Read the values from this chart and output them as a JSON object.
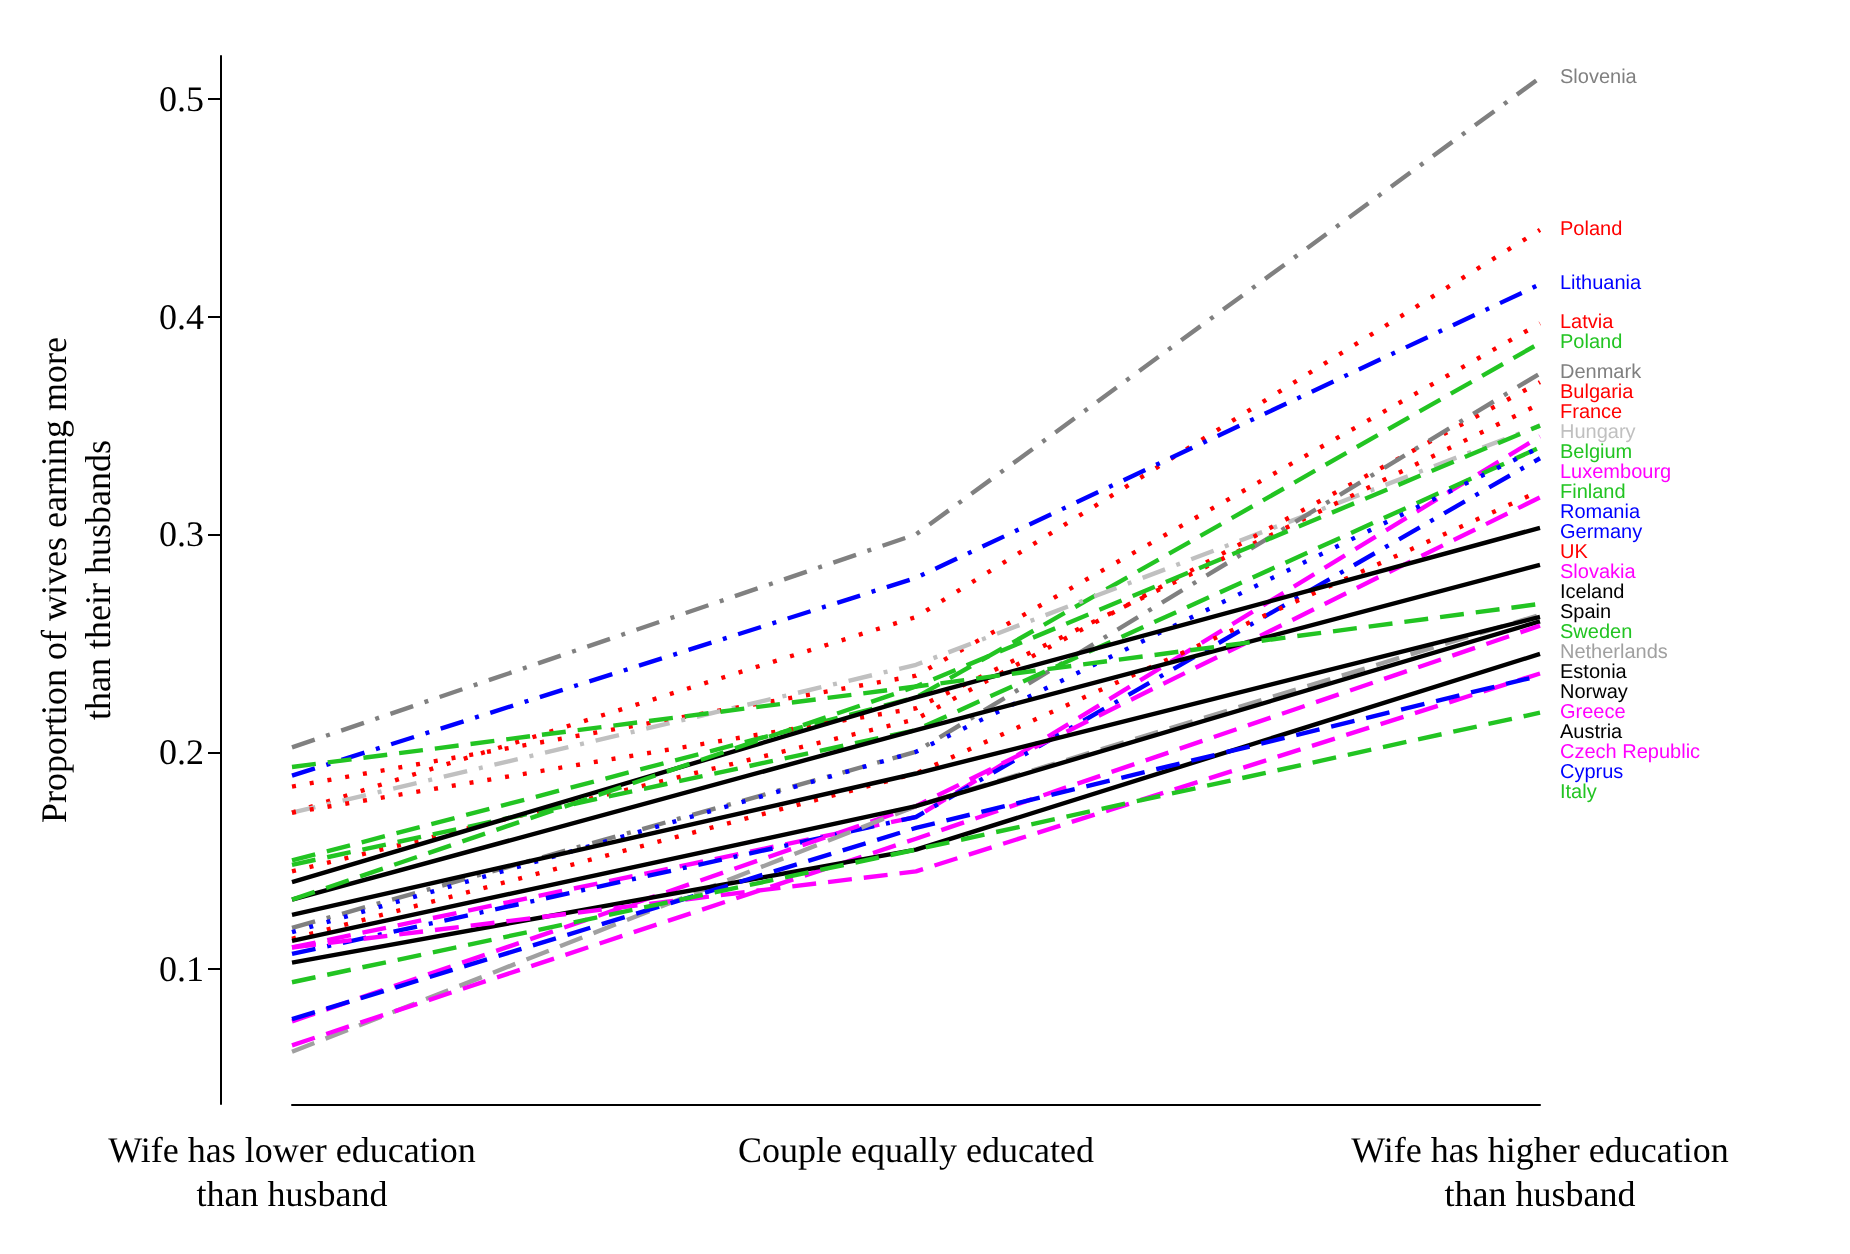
{
  "chart_data": {
    "type": "line",
    "ylabel": "Proportion of wives earning more\nthan their husbands",
    "categories": [
      "Wife has lower education\nthan husband",
      "Couple equally educated",
      "Wife has higher education\nthan husband"
    ],
    "ylim": [
      0.038,
      0.52
    ],
    "yticks": [
      0.1,
      0.2,
      0.3,
      0.4,
      0.5
    ],
    "grid": false,
    "marker": "none",
    "legend": "right",
    "series": [
      {
        "name": "Slovenia",
        "color": "#808080",
        "line_style": "dashdot",
        "values": [
          0.202,
          0.3,
          0.51
        ]
      },
      {
        "name": "Poland",
        "color": "#ff0000",
        "line_style": "dotted",
        "values": [
          0.172,
          0.262,
          0.44
        ]
      },
      {
        "name": "Lithuania",
        "color": "#0000ff",
        "line_style": "dashdot",
        "values": [
          0.189,
          0.28,
          0.415
        ]
      },
      {
        "name": "Latvia",
        "color": "#ff0000",
        "line_style": "dotted",
        "values": [
          0.184,
          0.235,
          0.397
        ]
      },
      {
        "name": "Poland",
        "color": "#22c422",
        "line_style": "dashed",
        "values": [
          0.15,
          0.225,
          0.388
        ]
      },
      {
        "name": "Hungary",
        "color": "#c0c0c0",
        "line_style": "dashdot",
        "values": [
          0.172,
          0.24,
          0.35
        ]
      },
      {
        "name": "Bulgaria",
        "color": "#ff0000",
        "line_style": "dotted",
        "values": [
          0.145,
          0.215,
          0.37
        ]
      },
      {
        "name": "France",
        "color": "#ff0000",
        "line_style": "dotted",
        "values": [
          0.172,
          0.22,
          0.36
        ]
      },
      {
        "name": "Denmark",
        "color": "#808080",
        "line_style": "dashdot",
        "values": [
          0.119,
          0.2,
          0.374
        ]
      },
      {
        "name": "Belgium",
        "color": "#22c422",
        "line_style": "dashed",
        "values": [
          0.193,
          0.23,
          0.35
        ]
      },
      {
        "name": "Luxembourg",
        "color": "#ff00ff",
        "line_style": "dashed",
        "values": [
          0.11,
          0.17,
          0.345
        ]
      },
      {
        "name": "Finland",
        "color": "#22c422",
        "line_style": "dashed",
        "values": [
          0.148,
          0.21,
          0.34
        ]
      },
      {
        "name": "Romania",
        "color": "#0000ff",
        "line_style": "dotted",
        "values": [
          0.117,
          0.2,
          0.34
        ]
      },
      {
        "name": "Germany",
        "color": "#0000ff",
        "line_style": "dashdot",
        "values": [
          0.107,
          0.17,
          0.335
        ]
      },
      {
        "name": "UK",
        "color": "#ff0000",
        "line_style": "dotted",
        "values": [
          0.114,
          0.19,
          0.32
        ]
      },
      {
        "name": "Slovakia",
        "color": "#ff00ff",
        "line_style": "dashed",
        "values": [
          0.076,
          0.175,
          0.317
        ]
      },
      {
        "name": "Iceland",
        "color": "#000000",
        "line_style": "solid",
        "values": [
          0.14,
          0.225,
          0.303
        ]
      },
      {
        "name": "Spain",
        "color": "#000000",
        "line_style": "solid",
        "values": [
          0.132,
          0.21,
          0.286
        ]
      },
      {
        "name": "Sweden",
        "color": "#22c422",
        "line_style": "dashed",
        "values": [
          0.132,
          0.23,
          0.268
        ]
      },
      {
        "name": "Netherlands",
        "color": "#a0a0a0",
        "line_style": "dashed",
        "values": [
          0.062,
          0.175,
          0.263
        ]
      },
      {
        "name": "Estonia",
        "color": "#000000",
        "line_style": "solid",
        "values": [
          0.125,
          0.19,
          0.262
        ]
      },
      {
        "name": "Norway",
        "color": "#000000",
        "line_style": "solid",
        "values": [
          0.113,
          0.175,
          0.26
        ]
      },
      {
        "name": "Greece",
        "color": "#ff00ff",
        "line_style": "dashed",
        "values": [
          0.065,
          0.16,
          0.258
        ]
      },
      {
        "name": "Austria",
        "color": "#000000",
        "line_style": "solid",
        "values": [
          0.103,
          0.155,
          0.245
        ]
      },
      {
        "name": "Czech Republic",
        "color": "#ff00ff",
        "line_style": "dashed",
        "values": [
          0.11,
          0.145,
          0.236
        ]
      },
      {
        "name": "Cyprus",
        "color": "#0000ff",
        "line_style": "dashed",
        "values": [
          0.077,
          0.165,
          0.235
        ]
      },
      {
        "name": "Italy",
        "color": "#22c422",
        "line_style": "dashed",
        "values": [
          0.094,
          0.155,
          0.218
        ]
      }
    ]
  }
}
